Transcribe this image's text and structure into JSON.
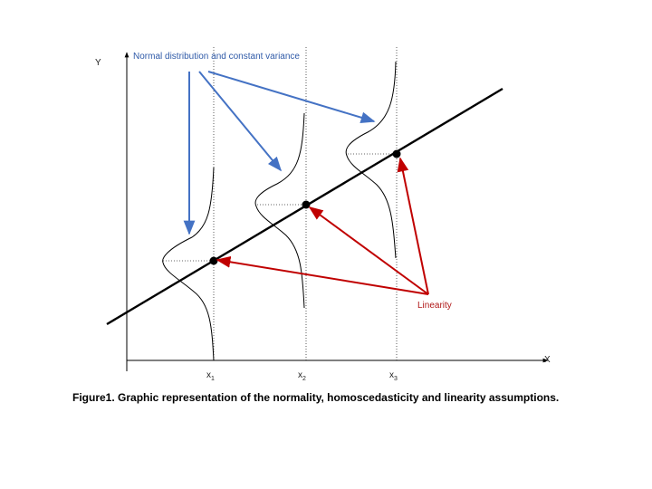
{
  "axes": {
    "y_label": "Y",
    "x_label": "X",
    "ticks": [
      {
        "base": "x",
        "sub": "1"
      },
      {
        "base": "x",
        "sub": "2"
      },
      {
        "base": "x",
        "sub": "3"
      }
    ]
  },
  "annotations": {
    "normal_variance": "Normal distribution and constant variance",
    "linearity": "Linearity"
  },
  "caption": "Figure1. Graphic representation of the normality, homoscedasticity and linearity assumptions.",
  "colors": {
    "blue_arrow": "#4472c4",
    "red_arrow": "#c00000",
    "line": "#000000"
  }
}
